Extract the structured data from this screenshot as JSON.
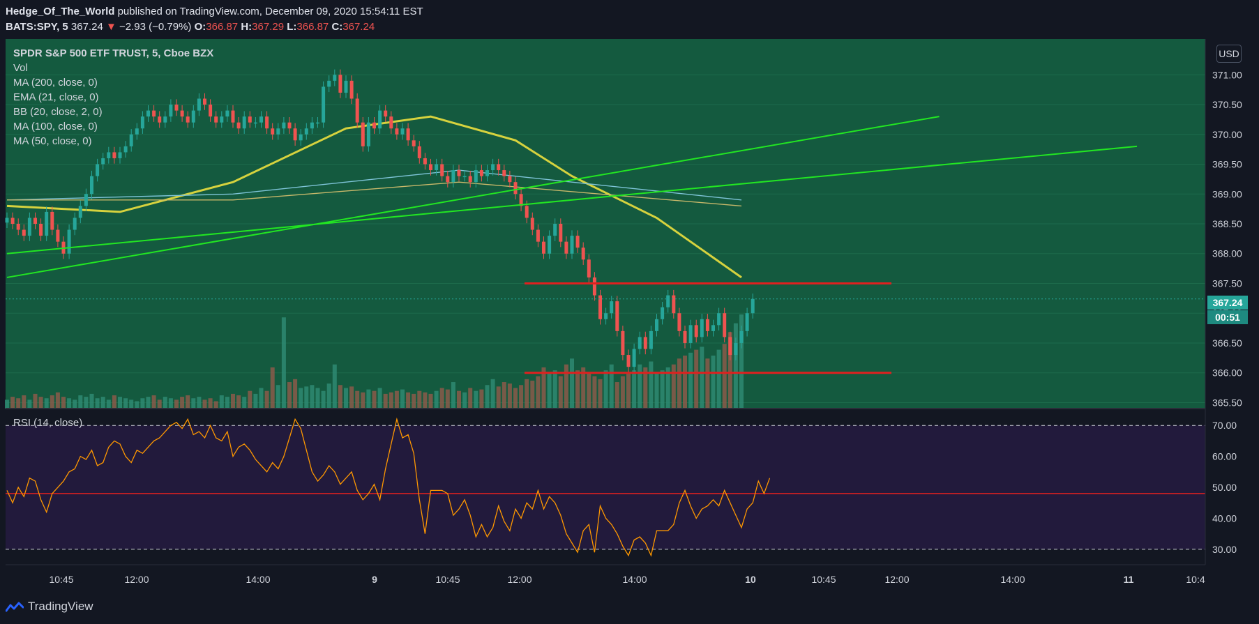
{
  "header": {
    "author": "Hedge_Of_The_World",
    "published": "published on TradingView.com, December 09, 2020 15:54:11 EST",
    "symbol": "BATS:SPY, 5",
    "last": "367.24",
    "change": "−2.93 (−0.79%)",
    "o_label": "O:",
    "o": "366.87",
    "h_label": "H:",
    "h": "367.29",
    "l_label": "L:",
    "l": "366.87",
    "c_label": "C:",
    "c": "367.24"
  },
  "legend": {
    "title": "SPDR S&P 500 ETF TRUST, 5, Cboe BZX",
    "items": [
      "Vol",
      "MA (200, close, 0)",
      "EMA (21, close, 0)",
      "BB (20, close, 2, 0)",
      "MA (100, close, 0)",
      "MA (50, close, 0)"
    ]
  },
  "currency": "USD",
  "price_tag": "367.24",
  "countdown": "00:51",
  "rsi_label": "RSI (14, close)",
  "footer": {
    "brand": "TradingView"
  },
  "colors": {
    "main_bg": "#145a3f",
    "rsi_bg": "#221a3c",
    "up": "#26a69a",
    "down": "#ef5350",
    "trendline": "#22e622",
    "level": "#e0201f",
    "rsi": "#ff9800",
    "ma50": "#c7c53c"
  },
  "chart_data": [
    {
      "type": "candlestick",
      "title": "SPDR S&P 500 ETF TRUST, 5, Cboe BZX",
      "ylim": [
        365.4,
        371.6
      ],
      "y_ticks": [
        "365.50",
        "366.00",
        "366.50",
        "367.00",
        "367.50",
        "368.00",
        "368.50",
        "369.00",
        "369.50",
        "370.00",
        "370.50",
        "371.00"
      ],
      "x_ticks": [
        "10:45",
        "12:00",
        "14:00",
        "9",
        "10:45",
        "12:00",
        "14:00",
        "10",
        "10:45",
        "12:00",
        "14:00",
        "11",
        "10:4"
      ],
      "close_series": [
        368.6,
        368.5,
        368.4,
        368.3,
        368.6,
        368.5,
        368.3,
        368.7,
        368.4,
        368.2,
        368.0,
        368.4,
        368.6,
        368.8,
        369.0,
        369.3,
        369.5,
        369.6,
        369.7,
        369.6,
        369.7,
        369.8,
        370.0,
        370.1,
        370.3,
        370.4,
        370.3,
        370.2,
        370.3,
        370.5,
        370.4,
        370.3,
        370.2,
        370.4,
        370.6,
        370.5,
        370.3,
        370.2,
        370.3,
        370.4,
        370.2,
        370.1,
        370.3,
        370.2,
        370.2,
        370.3,
        370.1,
        370.0,
        370.1,
        370.2,
        370.1,
        369.9,
        370.0,
        370.1,
        370.2,
        370.2,
        370.8,
        370.9,
        371.0,
        370.7,
        370.9,
        370.6,
        370.2,
        369.8,
        370.2,
        370.1,
        370.4,
        370.3,
        370.1,
        370.0,
        370.1,
        369.9,
        369.8,
        369.6,
        369.5,
        369.4,
        369.5,
        369.3,
        369.2,
        369.4,
        369.3,
        369.3,
        369.2,
        369.4,
        369.3,
        369.4,
        369.5,
        369.4,
        369.3,
        369.2,
        369.0,
        368.8,
        368.6,
        368.4,
        368.2,
        368.0,
        368.3,
        368.5,
        368.2,
        368.0,
        368.3,
        368.1,
        367.9,
        367.6,
        367.3,
        366.9,
        367.0,
        367.2,
        366.7,
        366.3,
        366.1,
        366.4,
        366.6,
        366.4,
        366.7,
        366.9,
        367.1,
        367.3,
        367.0,
        366.7,
        366.5,
        366.8,
        366.6,
        366.9,
        366.7,
        366.8,
        367.0,
        366.6,
        366.3,
        366.5,
        366.7,
        367.0,
        367.24
      ],
      "volume_series": [
        6,
        8,
        7,
        9,
        6,
        10,
        8,
        7,
        9,
        11,
        8,
        7,
        6,
        9,
        8,
        10,
        7,
        8,
        6,
        9,
        8,
        7,
        6,
        5,
        7,
        8,
        9,
        6,
        8,
        7,
        6,
        8,
        9,
        7,
        8,
        6,
        7,
        5,
        9,
        8,
        10,
        9,
        8,
        12,
        10,
        14,
        12,
        28,
        16,
        62,
        18,
        20,
        14,
        15,
        16,
        14,
        12,
        17,
        30,
        16,
        14,
        15,
        12,
        11,
        13,
        12,
        14,
        10,
        11,
        12,
        13,
        11,
        10,
        12,
        11,
        10,
        12,
        14,
        13,
        18,
        12,
        11,
        14,
        12,
        13,
        16,
        20,
        15,
        18,
        17,
        14,
        16,
        20,
        19,
        22,
        28,
        24,
        26,
        22,
        30,
        34,
        26,
        28,
        24,
        22,
        20,
        26,
        30,
        18,
        22,
        24,
        26,
        30,
        28,
        32,
        24,
        26,
        28,
        30,
        34,
        36,
        38,
        40,
        42,
        34,
        36,
        40,
        44,
        52,
        58,
        64
      ],
      "moving_averages": [
        {
          "name": "MA (50, close, 0)",
          "values": [
            [
              0,
              368.8
            ],
            [
              20,
              368.7
            ],
            [
              40,
              369.2
            ],
            [
              60,
              370.1
            ],
            [
              75,
              370.3
            ],
            [
              90,
              369.9
            ],
            [
              100,
              369.3
            ],
            [
              115,
              368.6
            ],
            [
              130,
              367.6
            ]
          ]
        },
        {
          "name": "MA (100, close, 0)",
          "values": [
            [
              0,
              368.9
            ],
            [
              40,
              369.0
            ],
            [
              80,
              369.4
            ],
            [
              110,
              369.1
            ],
            [
              130,
              368.9
            ]
          ]
        },
        {
          "name": "MA (200, close, 0)",
          "values": [
            [
              0,
              368.9
            ],
            [
              40,
              368.9
            ],
            [
              80,
              369.2
            ],
            [
              130,
              368.8
            ]
          ]
        }
      ],
      "annotations": {
        "trendline_1": [
          [
            0,
            367.6
          ],
          [
            165,
            370.3
          ]
        ],
        "trendline_2": [
          [
            0,
            368.0
          ],
          [
            200,
            369.8
          ]
        ],
        "resistance": 367.5,
        "support": 366.0
      }
    },
    {
      "type": "line",
      "title": "RSI (14, close)",
      "ylim": [
        25,
        75
      ],
      "y_ticks": [
        "30.00",
        "40.00",
        "50.00",
        "60.00",
        "70.00"
      ],
      "levels": [
        70,
        30
      ],
      "midline": 48,
      "values": [
        49,
        45,
        50,
        47,
        53,
        52,
        46,
        42,
        48,
        50,
        52,
        55,
        56,
        60,
        59,
        62,
        57,
        58,
        63,
        65,
        64,
        60,
        58,
        62,
        61,
        63,
        65,
        66,
        68,
        70,
        71,
        69,
        72,
        67,
        68,
        66,
        70,
        66,
        65,
        68,
        60,
        63,
        64,
        62,
        59,
        57,
        55,
        58,
        56,
        60,
        66,
        72,
        69,
        62,
        55,
        52,
        54,
        57,
        55,
        51,
        53,
        55,
        49,
        46,
        48,
        51,
        46,
        56,
        64,
        72,
        66,
        67,
        61,
        46,
        35,
        49,
        49,
        49,
        48,
        41,
        43,
        46,
        41,
        34,
        38,
        34,
        37,
        44,
        39,
        36,
        43,
        40,
        45,
        43,
        49,
        43,
        47,
        45,
        41,
        35,
        32,
        29,
        36,
        38,
        29,
        44,
        40,
        38,
        35,
        31,
        28,
        33,
        34,
        32,
        28,
        36,
        36,
        36,
        38,
        45,
        49,
        44,
        40,
        43,
        44,
        46,
        44,
        49,
        45,
        41,
        37,
        43,
        45,
        52,
        48,
        53
      ]
    }
  ]
}
